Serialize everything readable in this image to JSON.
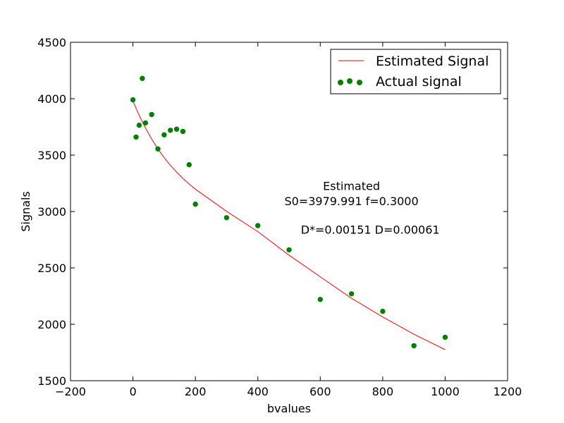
{
  "chart_data": {
    "type": "scatter",
    "title": "",
    "xlabel": "bvalues",
    "ylabel": "Signals",
    "xlim": [
      -200,
      1200
    ],
    "ylim": [
      1500,
      4500
    ],
    "xticks": [
      -200,
      0,
      200,
      400,
      600,
      800,
      1000,
      1200
    ],
    "yticks": [
      1500,
      2000,
      2500,
      3000,
      3500,
      4000,
      4500
    ],
    "grid": false,
    "legend_position": "top-right",
    "series": [
      {
        "name": "Estimated Signal",
        "kind": "line",
        "color": "#ff0000",
        "x": [
          0,
          10,
          20,
          30,
          40,
          60,
          80,
          100,
          120,
          140,
          160,
          180,
          200,
          300,
          400,
          500,
          600,
          700,
          800,
          900,
          1000
        ],
        "y": [
          3980,
          3915,
          3853,
          3795,
          3741,
          3642,
          3555,
          3478,
          3410,
          3349,
          3294,
          3244,
          3198,
          3001,
          2822,
          2613,
          2421,
          2231,
          2065,
          1912,
          1775
        ]
      },
      {
        "name": "Actual signal",
        "kind": "scatter",
        "color": "#008000",
        "x": [
          0,
          10,
          20,
          30,
          40,
          60,
          80,
          100,
          120,
          140,
          160,
          180,
          200,
          300,
          400,
          500,
          600,
          700,
          800,
          900,
          1000
        ],
        "y": [
          3990,
          3660,
          3765,
          4180,
          3785,
          3860,
          3555,
          3680,
          3720,
          3730,
          3710,
          3415,
          3065,
          2945,
          2875,
          2660,
          2220,
          2270,
          2115,
          1810,
          1885
        ]
      }
    ],
    "annotations": [
      {
        "text": "Estimated",
        "x": 700,
        "y": 3190
      },
      {
        "text": "S0=3979.991 f=0.3000",
        "x": 700,
        "y": 3055
      },
      {
        "text": "D*=0.00151 D=0.00061",
        "x": 760,
        "y": 2803
      }
    ]
  }
}
